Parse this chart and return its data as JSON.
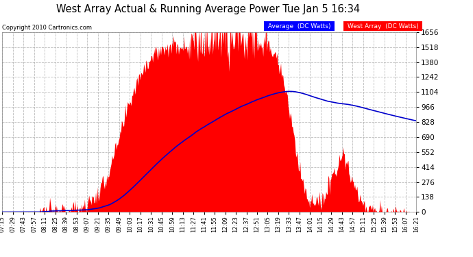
{
  "title": "West Array Actual & Running Average Power Tue Jan 5 16:34",
  "copyright": "Copyright 2010 Cartronics.com",
  "legend_avg": "Average  (DC Watts)",
  "legend_west": "West Array  (DC Watts)",
  "ymax": 1655.5,
  "yticks": [
    0.0,
    138.0,
    275.9,
    413.9,
    551.8,
    689.8,
    827.8,
    965.7,
    1103.7,
    1241.7,
    1379.6,
    1517.6,
    1655.5
  ],
  "bg_color": "#ffffff",
  "red_color": "#ff0000",
  "blue_color": "#0000cc",
  "grid_color": "#aaaaaa",
  "title_color": "black",
  "xtick_labels": [
    "07:15",
    "07:29",
    "07:43",
    "07:57",
    "08:11",
    "08:25",
    "08:39",
    "08:53",
    "09:07",
    "09:21",
    "09:35",
    "09:49",
    "10:03",
    "10:17",
    "10:31",
    "10:45",
    "10:59",
    "11:13",
    "11:27",
    "11:41",
    "11:55",
    "12:09",
    "12:23",
    "12:37",
    "12:51",
    "13:05",
    "13:19",
    "13:33",
    "13:47",
    "14:01",
    "14:15",
    "14:29",
    "14:43",
    "14:57",
    "15:11",
    "15:25",
    "15:39",
    "15:53",
    "16:07",
    "16:21"
  ],
  "n_points": 560
}
